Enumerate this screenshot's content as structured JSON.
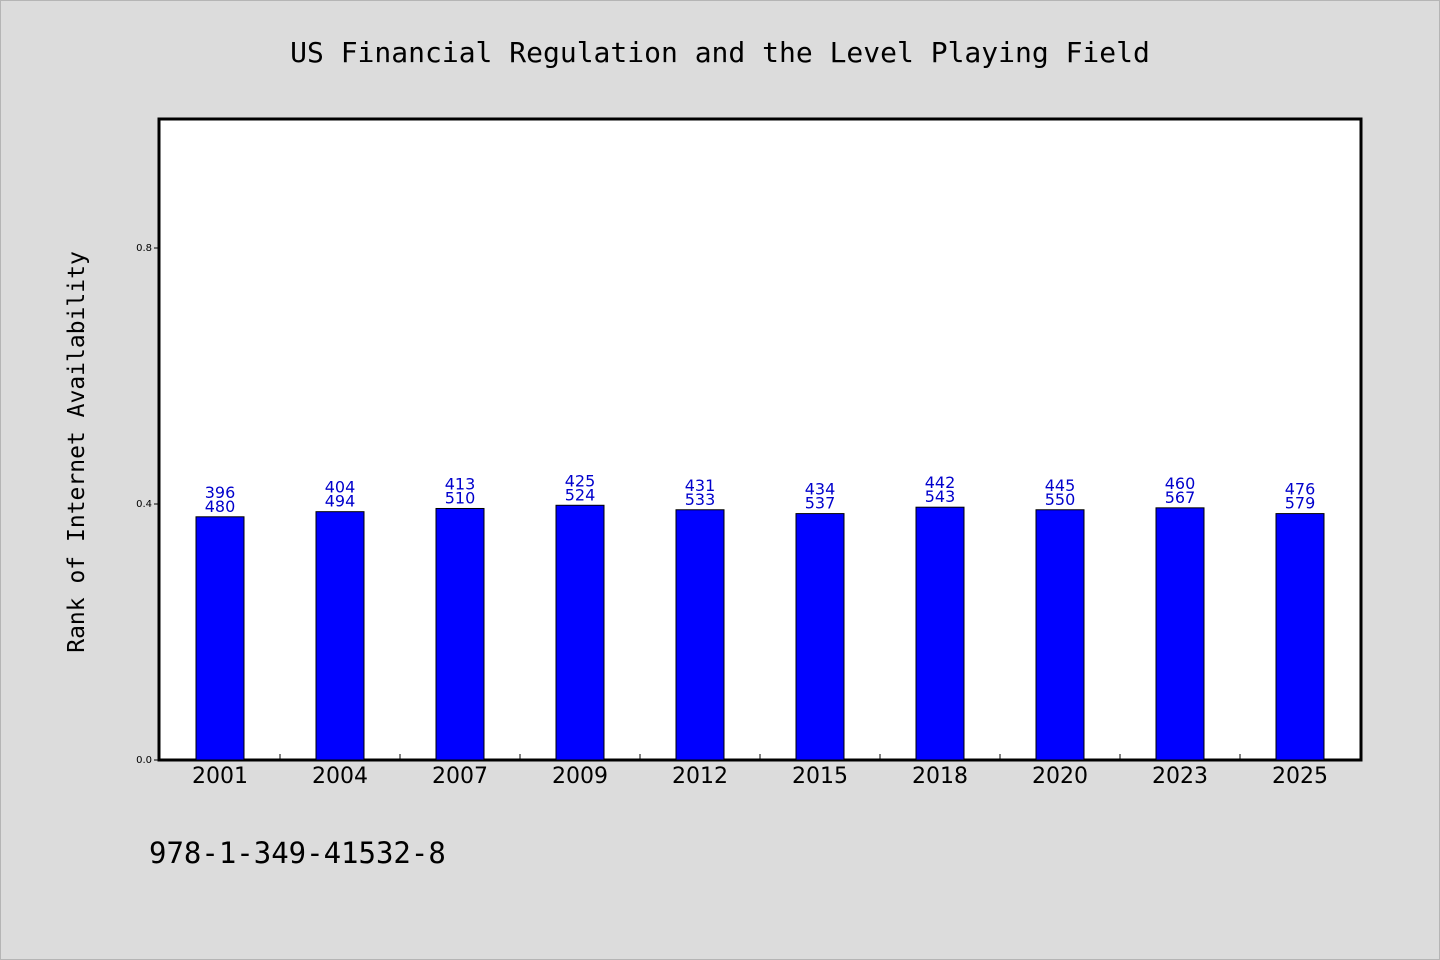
{
  "chart_data": {
    "type": "bar",
    "title": "US Financial Regulation and the Level Playing Field",
    "ylabel": "Rank of Internet Availability",
    "xlabel": "",
    "categories": [
      "2001",
      "2004",
      "2007",
      "2009",
      "2012",
      "2015",
      "2018",
      "2020",
      "2023",
      "2025"
    ],
    "values": [
      0.38,
      0.388,
      0.393,
      0.398,
      0.391,
      0.385,
      0.395,
      0.391,
      0.394,
      0.385
    ],
    "labels_top": [
      "396",
      "404",
      "413",
      "425",
      "431",
      "434",
      "442",
      "445",
      "460",
      "476"
    ],
    "labels_bottom": [
      "480",
      "494",
      "510",
      "524",
      "533",
      "537",
      "543",
      "550",
      "567",
      "579"
    ],
    "yticks": [
      "0.0",
      "0.4",
      "0.8"
    ],
    "ylim": [
      0,
      1
    ],
    "grid": false,
    "bar_color": "#0000ff",
    "label_color": "#0000cc"
  },
  "footer": {
    "isbn": "978-1-349-41532-8"
  }
}
